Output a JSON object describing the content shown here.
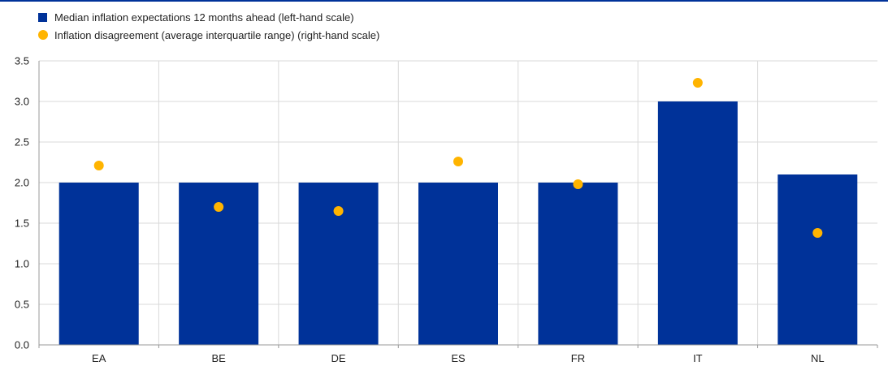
{
  "colors": {
    "bar": "#003299",
    "dot": "#FFB400",
    "grid": "#d9d9d9",
    "axis": "#999999",
    "text": "#222222"
  },
  "chart_data": {
    "type": "bar",
    "categories": [
      "EA",
      "BE",
      "DE",
      "ES",
      "FR",
      "IT",
      "NL"
    ],
    "series": [
      {
        "name": "Median inflation expectations 12 months ahead (left-hand scale)",
        "kind": "bar",
        "axis": "left",
        "values": [
          2.0,
          2.0,
          2.0,
          2.0,
          2.0,
          3.0,
          2.1
        ]
      },
      {
        "name": "Inflation disagreement (average interquartile range) (right-hand scale)",
        "kind": "scatter",
        "axis": "right",
        "values": [
          2.21,
          1.7,
          1.65,
          2.26,
          1.98,
          3.23,
          1.38
        ]
      }
    ],
    "y_ticks": [
      "0.0",
      "0.5",
      "1.0",
      "1.5",
      "2.0",
      "2.5",
      "3.0",
      "3.5"
    ],
    "ylim": [
      0,
      3.5
    ],
    "grid": true,
    "legend": "top-left",
    "title": "",
    "xlabel": "",
    "ylabel": ""
  }
}
